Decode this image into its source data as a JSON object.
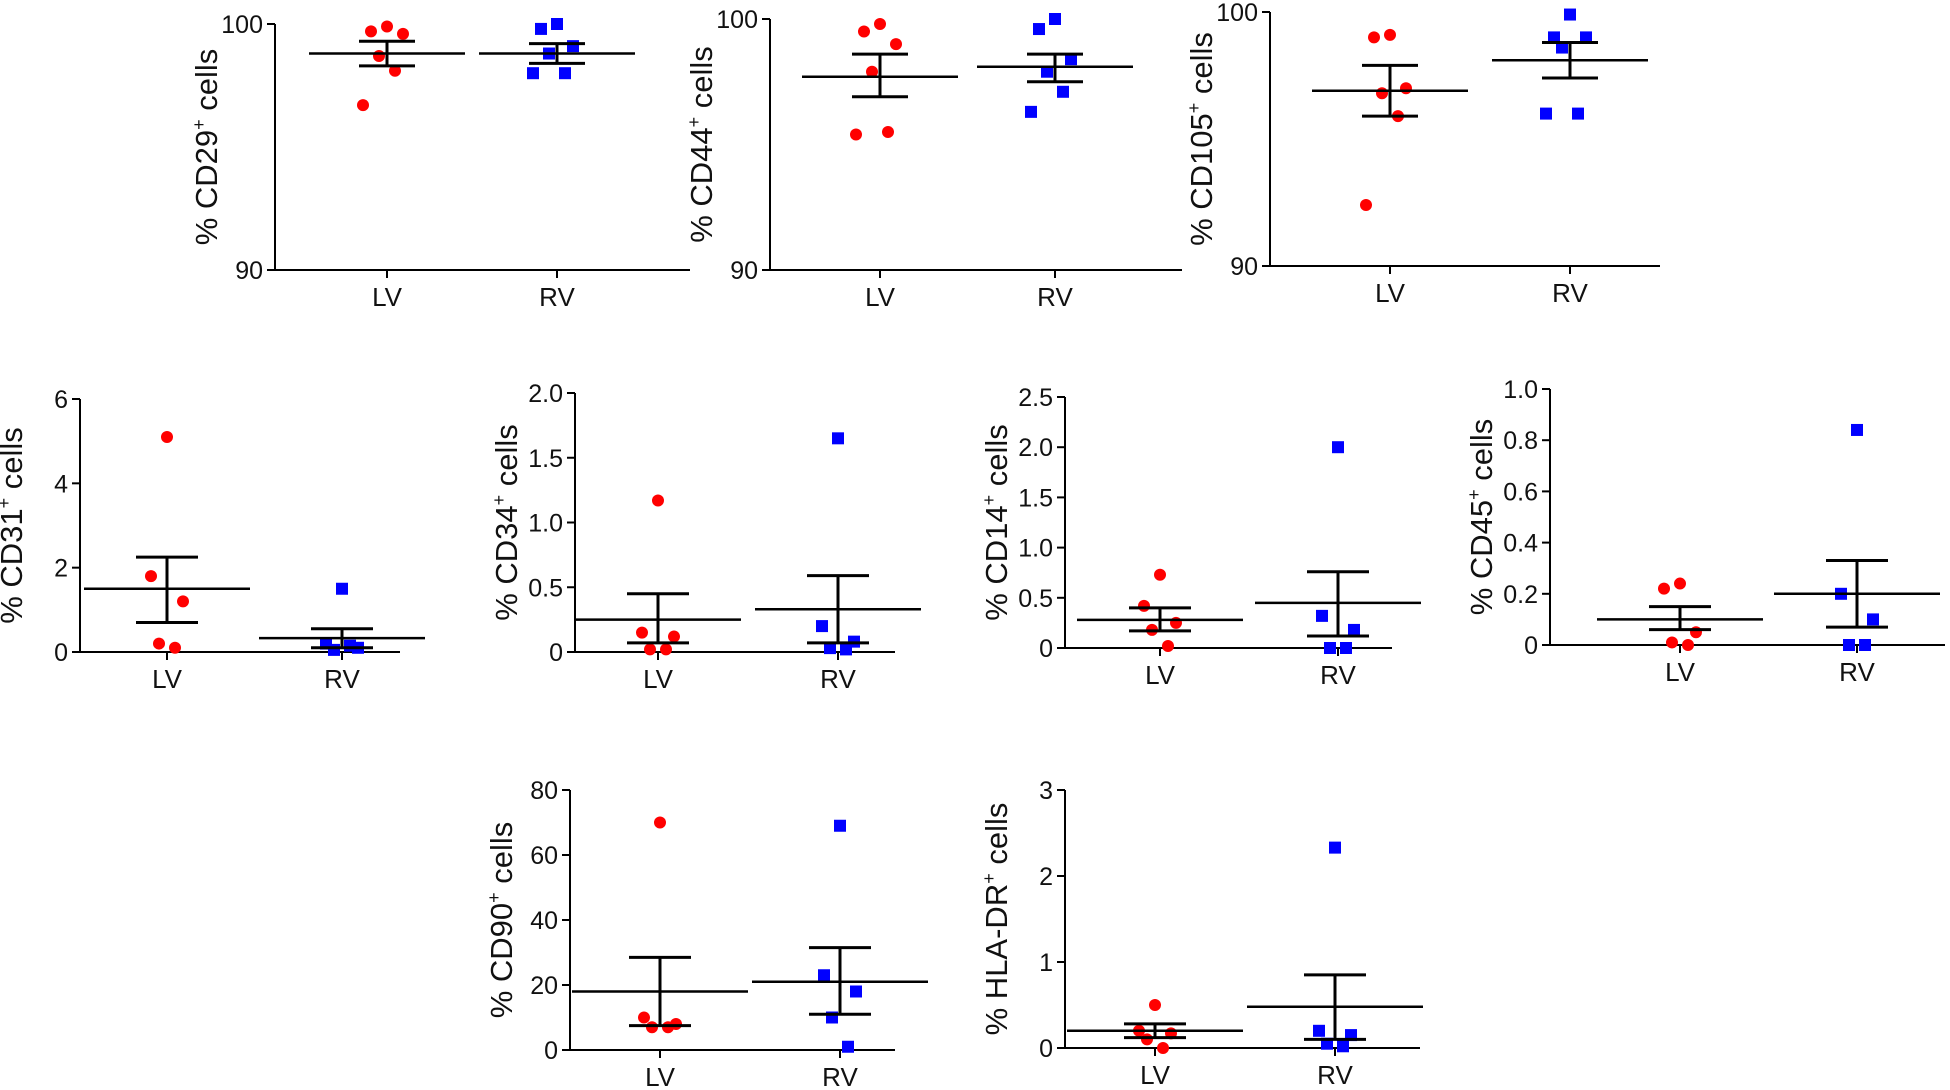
{
  "figure": {
    "group_colors": {
      "LV": "#ff0000",
      "RV": "#0000ff"
    },
    "error_bar_color": "#000000"
  },
  "chart_data": [
    {
      "type": "scatter",
      "marker": "CD29",
      "ylabel": {
        "prefix": "% CD29",
        "sup": "+",
        "suffix": " cells"
      },
      "ylim": [
        90,
        100
      ],
      "yticks": [
        "90",
        "100"
      ],
      "categories": [
        "LV",
        "RV"
      ],
      "series": [
        {
          "name": "LV",
          "values": [
            99.9,
            99.7,
            99.6,
            98.7,
            98.1,
            96.7
          ],
          "mean": 98.8,
          "sem_low": 98.3,
          "sem_high": 99.3
        },
        {
          "name": "RV",
          "values": [
            100.0,
            99.8,
            99.1,
            98.8,
            98.0,
            98.0
          ],
          "mean": 98.8,
          "sem_low": 98.4,
          "sem_high": 99.2
        }
      ]
    },
    {
      "type": "scatter",
      "marker": "CD44",
      "ylabel": {
        "prefix": "% CD44",
        "sup": "+",
        "suffix": " cells"
      },
      "ylim": [
        90,
        100
      ],
      "yticks": [
        "90",
        "100"
      ],
      "categories": [
        "LV",
        "RV"
      ],
      "series": [
        {
          "name": "LV",
          "values": [
            99.8,
            99.5,
            99.0,
            97.9,
            95.5,
            95.4
          ],
          "mean": 97.7,
          "sem_low": 96.9,
          "sem_high": 98.6
        },
        {
          "name": "RV",
          "values": [
            100.0,
            99.6,
            98.4,
            97.9,
            97.1,
            96.3
          ],
          "mean": 98.1,
          "sem_low": 97.5,
          "sem_high": 98.6
        }
      ]
    },
    {
      "type": "scatter",
      "marker": "CD105",
      "ylabel": {
        "prefix": "% CD105",
        "sup": "+",
        "suffix": " cells"
      },
      "ylim": [
        90,
        100
      ],
      "yticks": [
        "90",
        "100"
      ],
      "categories": [
        "LV",
        "RV"
      ],
      "series": [
        {
          "name": "LV",
          "values": [
            99.1,
            99.0,
            97.0,
            96.8,
            95.9,
            92.4
          ],
          "mean": 96.9,
          "sem_low": 95.9,
          "sem_high": 97.9
        },
        {
          "name": "RV",
          "values": [
            99.9,
            99.0,
            99.0,
            98.6,
            96.0,
            96.0
          ],
          "mean": 98.1,
          "sem_low": 97.4,
          "sem_high": 98.8
        }
      ]
    },
    {
      "type": "scatter",
      "marker": "CD31",
      "ylabel": {
        "prefix": "% CD31",
        "sup": "+",
        "suffix": " cells"
      },
      "ylim": [
        0,
        6
      ],
      "yticks": [
        "0",
        "2",
        "4",
        "6"
      ],
      "categories": [
        "LV",
        "RV"
      ],
      "series": [
        {
          "name": "LV",
          "values": [
            5.1,
            1.8,
            1.2,
            0.2,
            0.1
          ],
          "mean": 1.5,
          "sem_low": 0.7,
          "sem_high": 2.25
        },
        {
          "name": "RV",
          "values": [
            1.5,
            0.2,
            0.1,
            0.05,
            0.15
          ],
          "mean": 0.33,
          "sem_low": 0.1,
          "sem_high": 0.55
        }
      ]
    },
    {
      "type": "scatter",
      "marker": "CD34",
      "ylabel": {
        "prefix": "% CD34",
        "sup": "+",
        "suffix": " cells"
      },
      "ylim": [
        0,
        2.0
      ],
      "yticks": [
        "0",
        "0.5",
        "1.0",
        "1.5",
        "2.0"
      ],
      "categories": [
        "LV",
        "RV"
      ],
      "series": [
        {
          "name": "LV",
          "values": [
            1.17,
            0.15,
            0.12,
            0.02,
            0.02
          ],
          "mean": 0.25,
          "sem_low": 0.07,
          "sem_high": 0.45
        },
        {
          "name": "RV",
          "values": [
            1.65,
            0.2,
            0.08,
            0.03,
            0.02
          ],
          "mean": 0.33,
          "sem_low": 0.07,
          "sem_high": 0.59
        }
      ]
    },
    {
      "type": "scatter",
      "marker": "CD14",
      "ylabel": {
        "prefix": "% CD14",
        "sup": "+",
        "suffix": " cells"
      },
      "ylim": [
        0,
        2.5
      ],
      "yticks": [
        "0",
        "0.5",
        "1.0",
        "1.5",
        "2.0",
        "2.5"
      ],
      "categories": [
        "LV",
        "RV"
      ],
      "series": [
        {
          "name": "LV",
          "values": [
            0.73,
            0.42,
            0.25,
            0.18,
            0.02
          ],
          "mean": 0.28,
          "sem_low": 0.17,
          "sem_high": 0.4
        },
        {
          "name": "RV",
          "values": [
            2.0,
            0.32,
            0.18,
            0.0,
            0.0
          ],
          "mean": 0.45,
          "sem_low": 0.12,
          "sem_high": 0.76
        }
      ]
    },
    {
      "type": "scatter",
      "marker": "CD45",
      "ylabel": {
        "prefix": "% CD45",
        "sup": "+",
        "suffix": " cells"
      },
      "ylim": [
        0,
        1.0
      ],
      "yticks": [
        "0",
        "0.2",
        "0.4",
        "0.6",
        "0.8",
        "1.0"
      ],
      "categories": [
        "LV",
        "RV"
      ],
      "series": [
        {
          "name": "LV",
          "values": [
            0.24,
            0.22,
            0.05,
            0.01,
            0.0
          ],
          "mean": 0.1,
          "sem_low": 0.06,
          "sem_high": 0.15
        },
        {
          "name": "RV",
          "values": [
            0.84,
            0.2,
            0.1,
            0.0,
            0.0
          ],
          "mean": 0.2,
          "sem_low": 0.07,
          "sem_high": 0.33
        }
      ]
    },
    {
      "type": "scatter",
      "marker": "CD90",
      "ylabel": {
        "prefix": "% CD90",
        "sup": "+",
        "suffix": " cells"
      },
      "ylim": [
        0,
        80
      ],
      "yticks": [
        "0",
        "20",
        "40",
        "60",
        "80"
      ],
      "categories": [
        "LV",
        "RV"
      ],
      "series": [
        {
          "name": "LV",
          "values": [
            70,
            10,
            8,
            7,
            7
          ],
          "mean": 18,
          "sem_low": 7.5,
          "sem_high": 28.5
        },
        {
          "name": "RV",
          "values": [
            69,
            23,
            18,
            10,
            1
          ],
          "mean": 21,
          "sem_low": 11,
          "sem_high": 31.5
        }
      ]
    },
    {
      "type": "scatter",
      "marker": "HLA-DR",
      "ylabel": {
        "prefix": "% HLA-DR",
        "sup": "+",
        "suffix": " cells"
      },
      "ylim": [
        0,
        3
      ],
      "yticks": [
        "0",
        "1",
        "2",
        "3"
      ],
      "categories": [
        "LV",
        "RV"
      ],
      "series": [
        {
          "name": "LV",
          "values": [
            0.5,
            0.2,
            0.17,
            0.1,
            0.0
          ],
          "mean": 0.2,
          "sem_low": 0.12,
          "sem_high": 0.28
        },
        {
          "name": "RV",
          "values": [
            2.33,
            0.2,
            0.15,
            0.05,
            0.02
          ],
          "mean": 0.48,
          "sem_low": 0.1,
          "sem_high": 0.85
        }
      ]
    }
  ]
}
